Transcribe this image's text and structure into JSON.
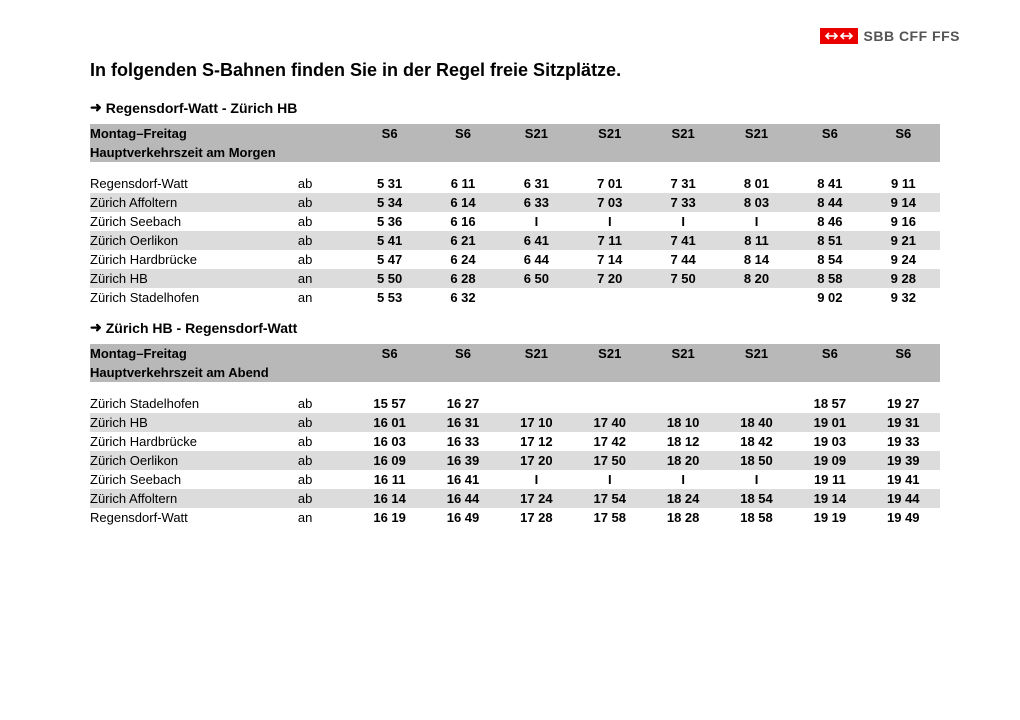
{
  "brand": {
    "text": "SBB CFF FFS",
    "logo_bg": "#eb0000"
  },
  "title": "In folgenden S-Bahnen finden Sie in der Regel freie Sitzplätze.",
  "tables": [
    {
      "direction": "Regensdorf-Watt - Zürich HB",
      "header_left": "Montag–Freitag",
      "subheader": "Hauptverkehrszeit am Morgen",
      "lines": [
        "S6",
        "S6",
        "S21",
        "S21",
        "S21",
        "S21",
        "S6",
        "S6"
      ],
      "rows": [
        {
          "station": "Regensdorf-Watt",
          "ab": "ab",
          "t": [
            "5 31",
            "6 11",
            "6 31",
            "7 01",
            "7 31",
            "8 01",
            "8 41",
            "9 11"
          ],
          "shade": false
        },
        {
          "station": "Zürich Affoltern",
          "ab": "ab",
          "t": [
            "5 34",
            "6 14",
            "6 33",
            "7 03",
            "7 33",
            "8 03",
            "8 44",
            "9 14"
          ],
          "shade": true
        },
        {
          "station": "Zürich Seebach",
          "ab": "ab",
          "t": [
            "5 36",
            "6 16",
            "I",
            "I",
            "I",
            "I",
            "8 46",
            "9 16"
          ],
          "shade": false
        },
        {
          "station": "Zürich Oerlikon",
          "ab": "ab",
          "t": [
            "5 41",
            "6 21",
            "6 41",
            "7 11",
            "7 41",
            "8 11",
            "8 51",
            "9 21"
          ],
          "shade": true
        },
        {
          "station": "Zürich Hardbrücke",
          "ab": "ab",
          "t": [
            "5 47",
            "6 24",
            "6 44",
            "7 14",
            "7 44",
            "8 14",
            "8 54",
            "9 24"
          ],
          "shade": false
        },
        {
          "station": "Zürich HB",
          "ab": "an",
          "t": [
            "5 50",
            "6 28",
            "6 50",
            "7 20",
            "7 50",
            "8 20",
            "8 58",
            "9 28"
          ],
          "shade": true
        },
        {
          "station": "Zürich Stadelhofen",
          "ab": "an",
          "t": [
            "5 53",
            "6 32",
            "",
            "",
            "",
            "",
            "9 02",
            "9 32"
          ],
          "shade": false
        }
      ]
    },
    {
      "direction": "Zürich HB - Regensdorf-Watt",
      "header_left": "Montag–Freitag",
      "subheader": "Hauptverkehrszeit am Abend",
      "lines": [
        "S6",
        "S6",
        "S21",
        "S21",
        "S21",
        "S21",
        "S6",
        "S6"
      ],
      "rows": [
        {
          "station": "Zürich Stadelhofen",
          "ab": "ab",
          "t": [
            "15 57",
            "16 27",
            "",
            "",
            "",
            "",
            "18 57",
            "19 27"
          ],
          "shade": false
        },
        {
          "station": "Zürich HB",
          "ab": "ab",
          "t": [
            "16 01",
            "16 31",
            "17 10",
            "17 40",
            "18 10",
            "18 40",
            "19 01",
            "19 31"
          ],
          "shade": true
        },
        {
          "station": "Zürich Hardbrücke",
          "ab": "ab",
          "t": [
            "16 03",
            "16 33",
            "17 12",
            "17 42",
            "18 12",
            "18 42",
            "19 03",
            "19 33"
          ],
          "shade": false
        },
        {
          "station": "Zürich Oerlikon",
          "ab": "ab",
          "t": [
            "16 09",
            "16 39",
            "17 20",
            "17 50",
            "18 20",
            "18 50",
            "19 09",
            "19 39"
          ],
          "shade": true
        },
        {
          "station": "Zürich Seebach",
          "ab": "ab",
          "t": [
            "16 11",
            "16 41",
            "I",
            "I",
            "I",
            "I",
            "19 11",
            "19 41"
          ],
          "shade": false
        },
        {
          "station": "Zürich Affoltern",
          "ab": "ab",
          "t": [
            "16 14",
            "16 44",
            "17 24",
            "17 54",
            "18 24",
            "18 54",
            "19 14",
            "19 44"
          ],
          "shade": true
        },
        {
          "station": "Regensdorf-Watt",
          "ab": "an",
          "t": [
            "16 19",
            "16 49",
            "17 28",
            "17 58",
            "18 28",
            "18 58",
            "19 19",
            "19 49"
          ],
          "shade": false
        }
      ]
    }
  ]
}
